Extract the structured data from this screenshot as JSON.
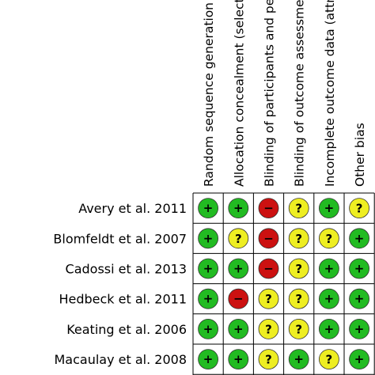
{
  "chart_data": {
    "type": "table",
    "columns": [
      "Random sequence generation (selection bias)",
      "Allocation concealment (selection bias)",
      "Blinding of participants and personnel (performance bias)",
      "Blinding of outcome assessment (detection bias)",
      "Incomplete outcome data (attrition bias)",
      "Other bias"
    ],
    "rows": [
      "Avery et al. 2011",
      "Blomfeldt et al. 2007",
      "Cadossi et al. 2013",
      "Hedbeck et al. 2011",
      "Keating et al. 2006",
      "Macaulay et al. 2008"
    ],
    "cells": [
      [
        "low",
        "low",
        "high",
        "unclear",
        "low",
        "unclear"
      ],
      [
        "low",
        "unclear",
        "high",
        "unclear",
        "unclear",
        "low"
      ],
      [
        "low",
        "low",
        "high",
        "unclear",
        "low",
        "low"
      ],
      [
        "low",
        "high",
        "unclear",
        "unclear",
        "low",
        "low"
      ],
      [
        "low",
        "low",
        "unclear",
        "unclear",
        "low",
        "low"
      ],
      [
        "low",
        "low",
        "unclear",
        "low",
        "unclear",
        "low"
      ]
    ],
    "legend": {
      "low": {
        "symbol": "+",
        "color": "#22bb22"
      },
      "unclear": {
        "symbol": "?",
        "color": "#eeee22"
      },
      "high": {
        "symbol": "−",
        "color": "#cc1111"
      }
    }
  }
}
